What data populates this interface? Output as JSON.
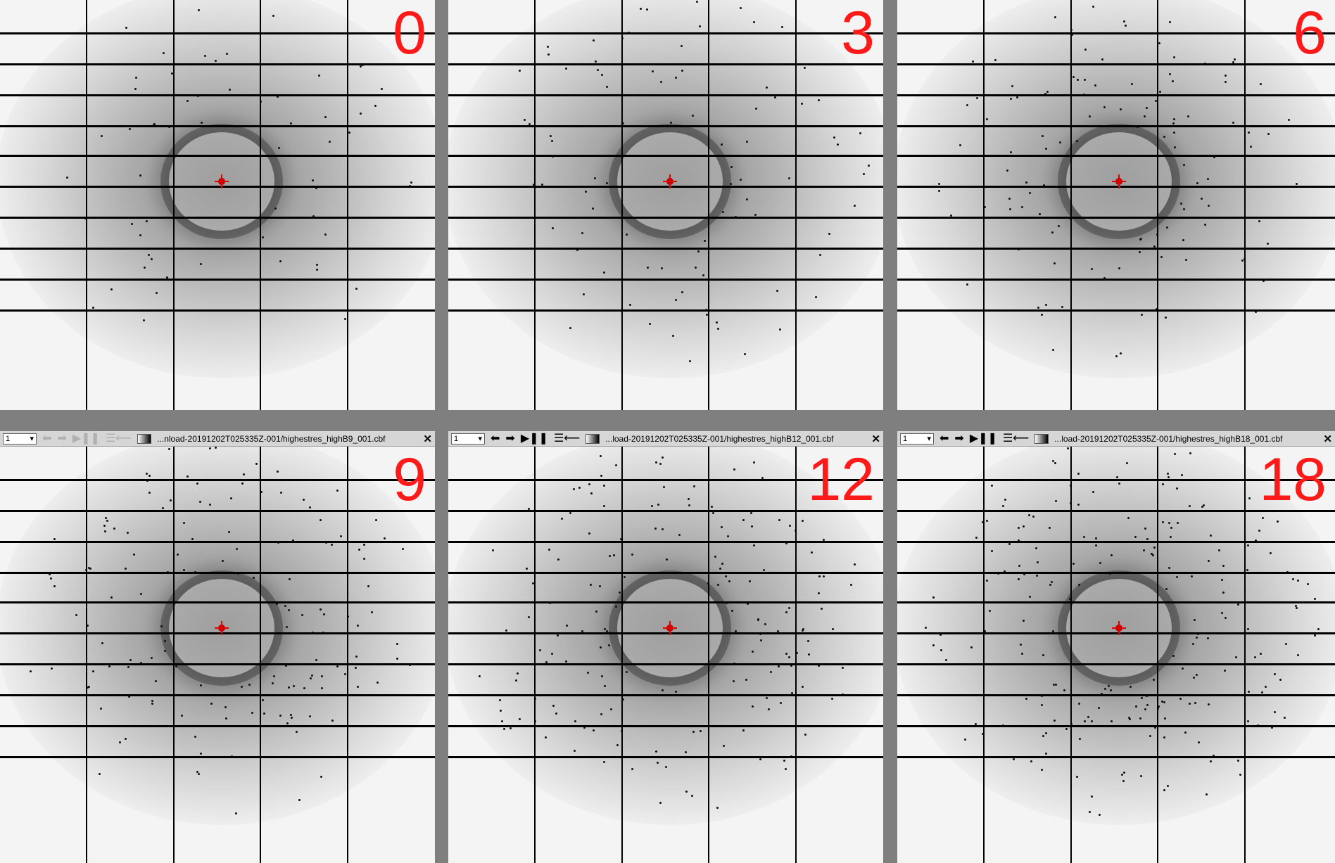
{
  "panels": [
    {
      "frame_label": "0",
      "toolbar": null
    },
    {
      "frame_label": "3",
      "toolbar": null
    },
    {
      "frame_label": "6",
      "toolbar": null
    },
    {
      "frame_label": "9",
      "toolbar": {
        "frame_select": "1",
        "path": "...nload-20191202T025335Z-001/highestres_highB9_001.cbf",
        "close": "✕",
        "faded": true
      }
    },
    {
      "frame_label": "12",
      "toolbar": {
        "frame_select": "1",
        "path": "...load-20191202T025335Z-001/highestres_highB12_001.cbf",
        "close": "✕",
        "faded": false
      }
    },
    {
      "frame_label": "18",
      "toolbar": {
        "frame_select": "1",
        "path": "...load-20191202T025335Z-001/highestres_highB18_001.cbf",
        "close": "✕",
        "faded": false
      }
    }
  ],
  "toolbar_icons": {
    "prev": "⬅",
    "next": "➡",
    "play_pause": "▶❚❚",
    "list": "☰⟵",
    "dropdown_arrow": "▾"
  },
  "colors": {
    "frame_label": "#ff1a1a",
    "beam_center": "#e00000",
    "module_gaps": "#000000",
    "detector_background": "#f4f4f4",
    "panel_separator": "#7f7f7f"
  }
}
